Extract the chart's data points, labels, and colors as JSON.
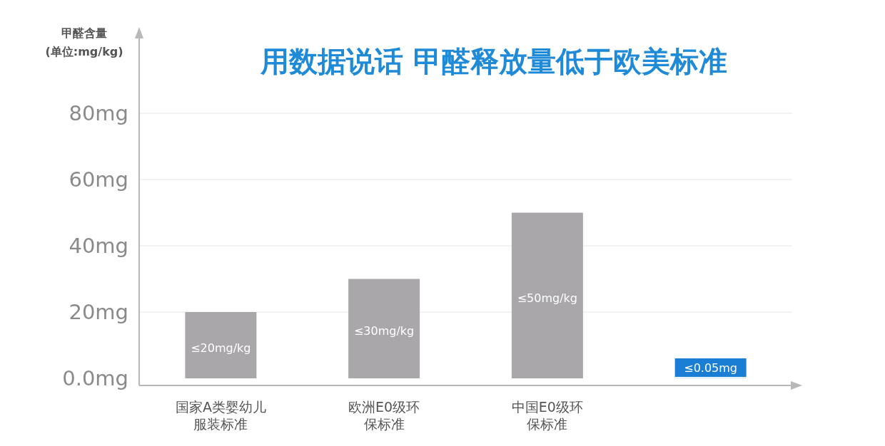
{
  "chart_data": {
    "type": "bar",
    "title": "用数据说话  甲醛释放量低于欧美标准",
    "ylabel": "甲醛含量\n(单位:mg/kg)",
    "categories": [
      "国家A类婴幼儿服装标准",
      "欧洲E0级环保标准",
      "中国E0级环保标准",
      null
    ],
    "values": [
      20,
      30,
      50,
      0.05
    ],
    "colors": [
      "#a9a7aa",
      "#a9a7aa",
      "#a9a7aa",
      "#1a7fd4"
    ],
    "value_labels": [
      "≤20mg/kg",
      "≤30mg/kg",
      "≤50mg/kg",
      "≤0.05mg"
    ],
    "ylim": [
      0,
      80
    ],
    "yticks": [
      {
        "value": 0,
        "label": "0.0mg"
      },
      {
        "value": 20,
        "label": "20mg"
      },
      {
        "value": 40,
        "label": "40mg"
      },
      {
        "value": 60,
        "label": "60mg"
      },
      {
        "value": 80,
        "label": "80mg"
      }
    ],
    "grid": "y"
  }
}
